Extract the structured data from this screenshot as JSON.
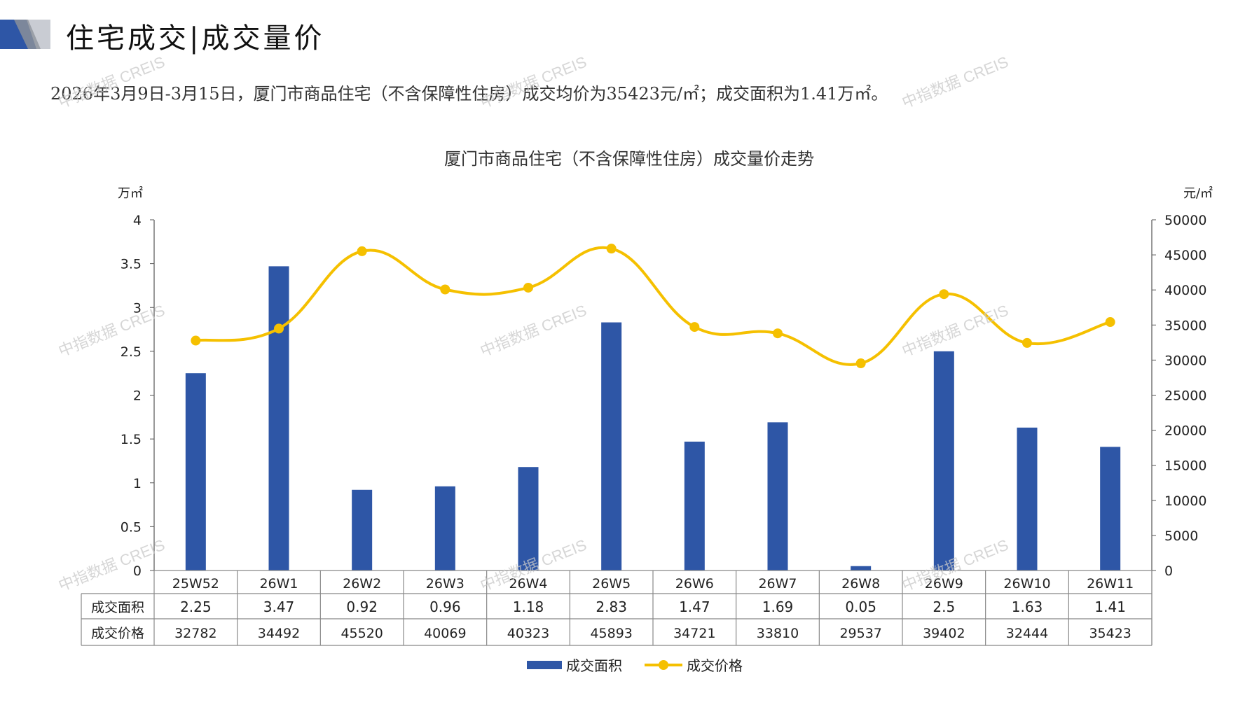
{
  "header": {
    "title": "住宅成交|成交量价",
    "summary": "2026年3月9日-3月15日，厦门市商品住宅（不含保障性住房）成交均价为35423元/㎡；成交面积为1.41万㎡。"
  },
  "watermark": "中指数据 CREIS",
  "colors": {
    "bar": "#2E56A6",
    "line": "#F5C000",
    "table_border": "#888888"
  },
  "chart_data": {
    "type": "bar",
    "title": "厦门市商品住宅（不含保障性住房）成交量价走势",
    "categories": [
      "25W52",
      "26W1",
      "26W2",
      "26W3",
      "26W4",
      "26W5",
      "26W6",
      "26W7",
      "26W8",
      "26W9",
      "26W10",
      "26W11"
    ],
    "y_left": {
      "unit": "万㎡",
      "range": [
        0,
        4
      ],
      "ticks": [
        "4",
        "3.5",
        "3",
        "2.5",
        "2",
        "1.5",
        "1",
        "0.5",
        "0"
      ]
    },
    "y_right": {
      "unit": "元/㎡",
      "range": [
        0,
        50000
      ],
      "ticks": [
        "50000",
        "45000",
        "40000",
        "35000",
        "30000",
        "25000",
        "20000",
        "15000",
        "10000",
        "5000",
        "0"
      ]
    },
    "series": [
      {
        "name": "成交面积",
        "type": "bar",
        "axis": "left",
        "values": [
          2.25,
          3.47,
          0.92,
          0.96,
          1.18,
          2.83,
          1.47,
          1.69,
          0.05,
          2.5,
          1.63,
          1.41
        ],
        "labels": [
          "2.25",
          "3.47",
          "0.92",
          "0.96",
          "1.18",
          "2.83",
          "1.47",
          "1.69",
          "0.05",
          "2.5",
          "1.63",
          "1.41"
        ]
      },
      {
        "name": "成交价格",
        "type": "line",
        "axis": "right",
        "values": [
          32782,
          34492,
          45520,
          40069,
          40323,
          45893,
          34721,
          33810,
          29537,
          39402,
          32444,
          35423
        ],
        "labels": [
          "32782",
          "34492",
          "45520",
          "40069",
          "40323",
          "45893",
          "34721",
          "33810",
          "29537",
          "39402",
          "32444",
          "35423"
        ]
      }
    ],
    "legend": "bottom",
    "grid": false
  }
}
